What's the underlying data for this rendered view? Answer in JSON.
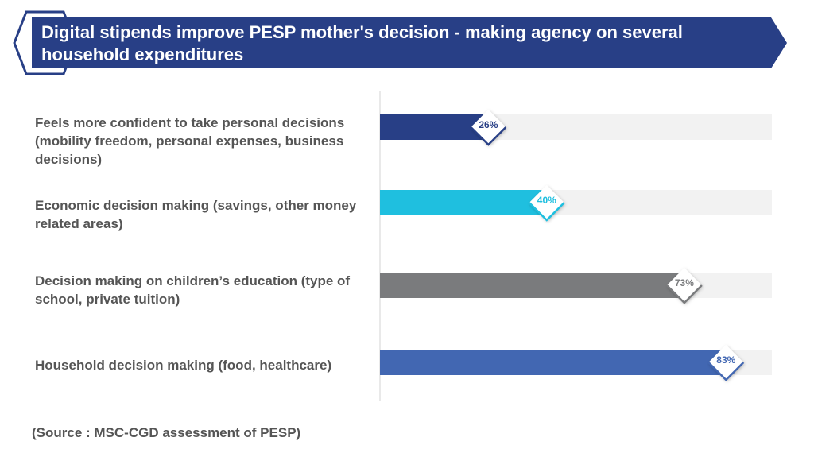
{
  "chart_data": {
    "type": "bar",
    "orientation": "horizontal",
    "title": "Digital stipends improve PESP mother's decision - making agency on several household expenditures",
    "categories": [
      "Feels more confident to take personal decisions (mobility freedom, personal expenses, business decisions)",
      "Economic decision making (savings, other money related areas)",
      "Decision making on children’s education (type of school, private tuition)",
      "Household decision making (food, healthcare)"
    ],
    "values": [
      26,
      40,
      73,
      83
    ],
    "value_labels": [
      "26%",
      "40%",
      "73%",
      "83%"
    ],
    "colors": [
      "#283f86",
      "#1fbfdf",
      "#7a7b7d",
      "#4267b2"
    ],
    "xlim": [
      0,
      94
    ],
    "source": "(Source : MSC-CGD assessment of PESP)"
  }
}
